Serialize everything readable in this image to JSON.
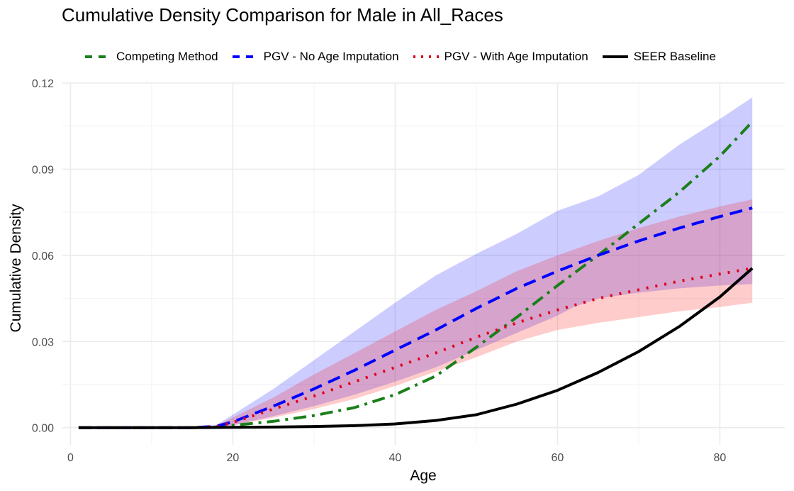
{
  "chart_data": {
    "type": "line",
    "title": "Cumulative Density Comparison for Male in All_Races",
    "xlabel": "Age",
    "ylabel": "Cumulative Density",
    "xlim": [
      -1,
      88
    ],
    "ylim": [
      -0.006,
      0.12
    ],
    "x_ticks": [
      0,
      20,
      40,
      60,
      80
    ],
    "x_tick_labels": [
      "0",
      "20",
      "40",
      "60",
      "80"
    ],
    "y_ticks": [
      0,
      0.03,
      0.06,
      0.09,
      0.12
    ],
    "y_tick_labels": [
      "0.00",
      "0.03",
      "0.06",
      "0.09",
      "0.12"
    ],
    "grid": true,
    "legend_position": "top",
    "series": [
      {
        "name": "Competing Method",
        "color": "#1a7f1a",
        "dash": "dotdash",
        "legend_dash": "dash",
        "x": [
          1,
          10,
          15,
          18,
          20,
          25,
          30,
          35,
          40,
          45,
          50,
          55,
          60,
          65,
          70,
          75,
          80,
          84
        ],
        "y": [
          0,
          0,
          0,
          0.0002,
          0.0008,
          0.0022,
          0.0042,
          0.007,
          0.0115,
          0.018,
          0.028,
          0.0385,
          0.0495,
          0.06,
          0.071,
          0.082,
          0.0945,
          0.1065
        ]
      },
      {
        "name": "PGV - No Age Imputation",
        "color": "#0000ff",
        "dash": "dash",
        "x": [
          1,
          10,
          15,
          18,
          20,
          25,
          30,
          35,
          40,
          45,
          50,
          55,
          60,
          65,
          70,
          75,
          80,
          84
        ],
        "y": [
          0,
          0,
          0,
          0.0005,
          0.002,
          0.0075,
          0.0135,
          0.02,
          0.027,
          0.034,
          0.0415,
          0.0485,
          0.0545,
          0.06,
          0.065,
          0.0695,
          0.0735,
          0.0765
        ]
      },
      {
        "name": "PGV - With Age Imputation",
        "color": "#e0001b",
        "dash": "dot",
        "x": [
          1,
          10,
          15,
          18,
          20,
          25,
          30,
          35,
          40,
          45,
          50,
          55,
          60,
          65,
          70,
          75,
          80,
          84
        ],
        "y": [
          0,
          0,
          0,
          0.0004,
          0.0018,
          0.0065,
          0.011,
          0.016,
          0.021,
          0.026,
          0.0315,
          0.0365,
          0.041,
          0.045,
          0.048,
          0.051,
          0.0535,
          0.0555
        ]
      },
      {
        "name": "SEER Baseline",
        "color": "#000000",
        "dash": "solid",
        "x": [
          1,
          10,
          15,
          20,
          25,
          30,
          35,
          40,
          45,
          50,
          55,
          60,
          65,
          70,
          75,
          80,
          84
        ],
        "y": [
          0,
          0,
          0,
          0.0001,
          0.0002,
          0.0004,
          0.0007,
          0.0013,
          0.0025,
          0.0045,
          0.0082,
          0.013,
          0.0192,
          0.0265,
          0.0352,
          0.0455,
          0.0555
        ]
      }
    ],
    "bands": [
      {
        "series": "PGV - No Age Imputation",
        "fill": "#0000ff",
        "opacity": 0.2,
        "x": [
          1,
          10,
          15,
          18,
          20,
          25,
          30,
          35,
          40,
          45,
          50,
          55,
          60,
          62,
          65,
          70,
          75,
          80,
          84
        ],
        "lower": [
          0,
          0,
          0,
          0.0002,
          0.0008,
          0.004,
          0.0075,
          0.0115,
          0.016,
          0.021,
          0.027,
          0.033,
          0.039,
          0.042,
          0.045,
          0.047,
          0.0485,
          0.0495,
          0.05
        ],
        "upper": [
          0,
          0,
          0,
          0.001,
          0.0045,
          0.0135,
          0.0235,
          0.0335,
          0.0435,
          0.053,
          0.0605,
          0.0675,
          0.0755,
          0.0775,
          0.0805,
          0.088,
          0.0985,
          0.1075,
          0.115
        ]
      },
      {
        "series": "PGV - With Age Imputation",
        "fill": "#ff0000",
        "opacity": 0.2,
        "x": [
          1,
          10,
          15,
          18,
          20,
          25,
          30,
          35,
          40,
          45,
          50,
          55,
          60,
          65,
          70,
          75,
          80,
          84
        ],
        "lower": [
          0,
          0,
          0,
          0.0002,
          0.0008,
          0.0035,
          0.0065,
          0.01,
          0.0145,
          0.0195,
          0.0245,
          0.03,
          0.034,
          0.0365,
          0.0385,
          0.0405,
          0.042,
          0.0435
        ],
        "upper": [
          0,
          0,
          0,
          0.0008,
          0.0035,
          0.0105,
          0.0185,
          0.026,
          0.0335,
          0.041,
          0.0475,
          0.0545,
          0.06,
          0.065,
          0.0695,
          0.0735,
          0.077,
          0.0795
        ]
      }
    ]
  }
}
